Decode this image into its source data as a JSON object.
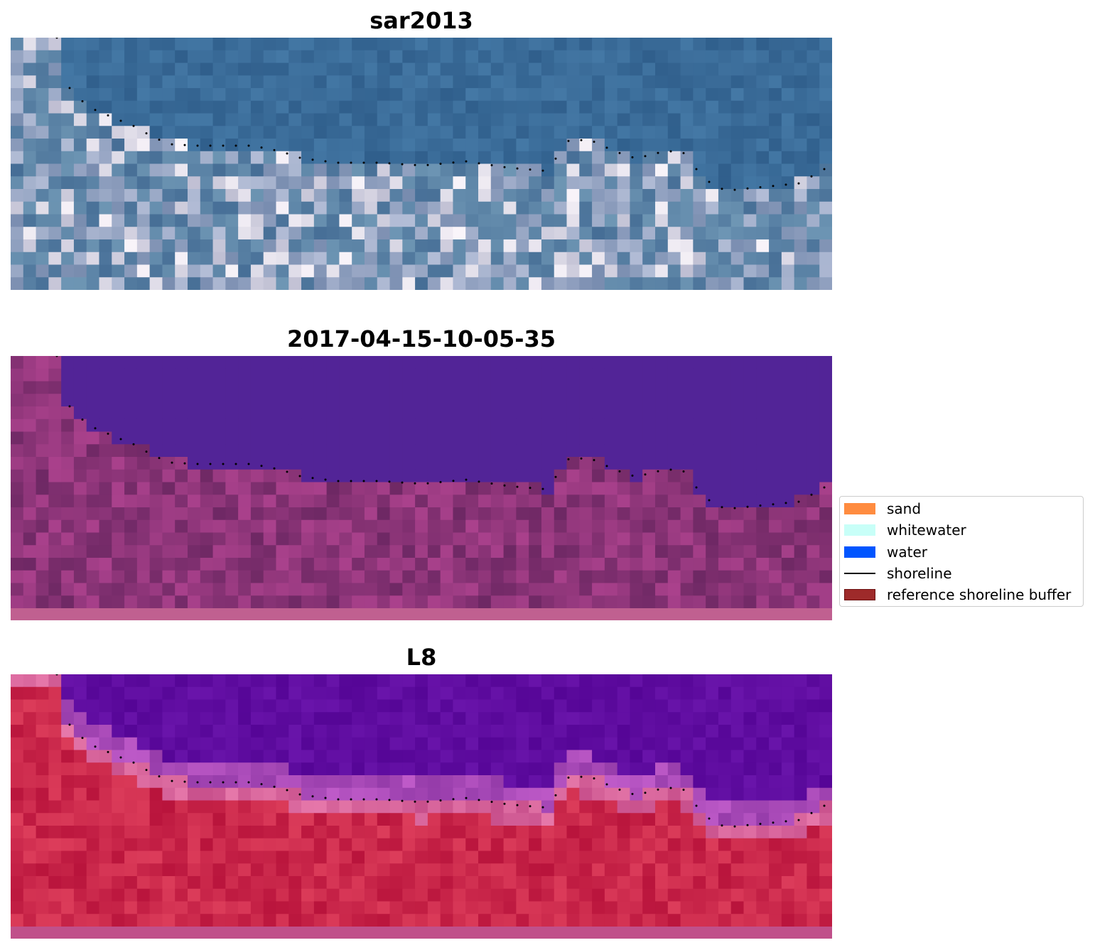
{
  "panels": [
    {
      "title": "sar2013",
      "style": "sar"
    },
    {
      "title": "2017-04-15-10-05-35",
      "style": "classified"
    },
    {
      "title": "L8",
      "style": "l8"
    }
  ],
  "legend": {
    "items": [
      {
        "label": "sand",
        "kind": "patch",
        "color": "#ff8c40"
      },
      {
        "label": "whitewater",
        "kind": "patch",
        "color": "#c8fff8"
      },
      {
        "label": "water",
        "kind": "patch",
        "color": "#0055ff"
      },
      {
        "label": "shoreline",
        "kind": "line",
        "color": "#000000"
      },
      {
        "label": "reference shoreline buffer",
        "kind": "patch",
        "color": "#9e2a2a",
        "edge": "#6b1010"
      }
    ]
  },
  "colors": {
    "sar_water": "#34638f",
    "classified_water": "#522497",
    "classified_land": "#7d3372",
    "buffer_strip": "#c06090",
    "l8_water": "#5a0a9c",
    "l8_land": "#c4244e",
    "shoreline_dots": "#000000"
  }
}
